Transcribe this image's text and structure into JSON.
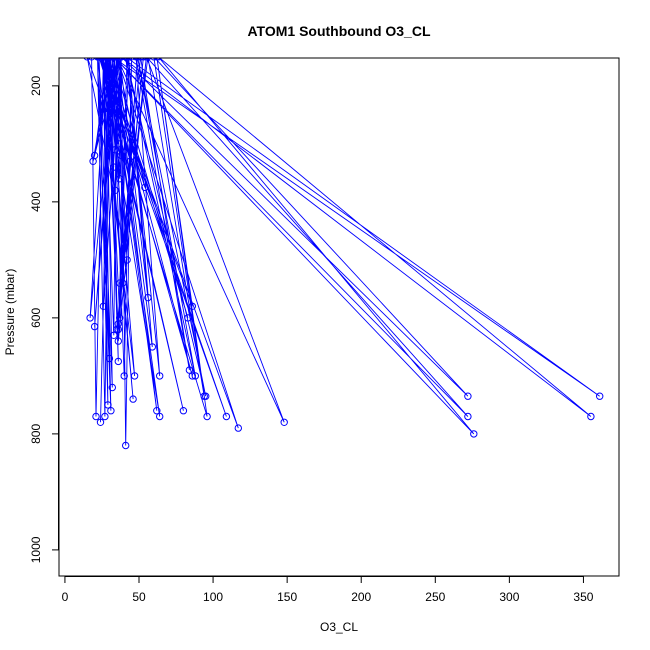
{
  "chart_data": {
    "type": "line",
    "title": "ATOM1 Southbound O3_CL",
    "xlabel": "O3_CL",
    "ylabel": "Pressure (mbar)",
    "xlim": [
      -4,
      374
    ],
    "ylim": [
      1045,
      152
    ],
    "y_reversed": true,
    "xticks": [
      0,
      50,
      100,
      150,
      200,
      250,
      300,
      350
    ],
    "yticks": [
      200,
      400,
      600,
      800,
      1000
    ],
    "grid": false,
    "legend": "none",
    "color": "#0000ff",
    "marker": "open-circle",
    "series": [
      {
        "x": [
          24,
          30,
          27,
          22,
          31,
          26,
          29,
          23,
          32,
          28,
          17,
          34,
          20,
          35,
          33,
          26,
          30,
          22,
          47,
          29,
          36,
          31,
          19,
          37,
          38,
          33,
          34,
          28,
          44,
          35,
          54,
          27,
          36,
          42,
          56,
          37,
          39,
          33,
          20,
          29,
          40,
          15,
          36,
          27,
          33,
          30,
          37,
          38,
          34,
          35,
          42,
          32,
          40,
          45,
          41,
          38,
          26,
          29,
          37,
          49,
          36,
          53,
          35,
          55,
          36,
          43,
          59,
          33,
          62,
          30,
          64,
          25,
          80,
          24,
          86,
          62,
          96,
          23,
          109,
          25,
          117,
          35,
          148,
          55,
          272,
          33,
          276,
          63,
          355,
          38,
          272,
          60,
          94,
          56,
          37,
          51,
          84,
          48,
          64,
          41,
          88,
          49,
          95,
          41,
          361,
          32,
          83,
          29,
          86,
          25,
          46,
          26,
          21,
          18
        ],
        "y": [
          780,
          150,
          770,
          150,
          760,
          150,
          750,
          150,
          720,
          150,
          600,
          150,
          615,
          150,
          630,
          150,
          670,
          150,
          700,
          150,
          675,
          150,
          330,
          150,
          320,
          150,
          310,
          150,
          330,
          150,
          375,
          150,
          620,
          150,
          565,
          150,
          540,
          150,
          320,
          150,
          480,
          150,
          300,
          150,
          340,
          150,
          360,
          150,
          380,
          150,
          500,
          150,
          700,
          150,
          820,
          150,
          580,
          150,
          600,
          150,
          610,
          150,
          620,
          150,
          640,
          150,
          650,
          150,
          760,
          150,
          770,
          150,
          760,
          150,
          580,
          150,
          770,
          150,
          770,
          150,
          790,
          150,
          780,
          150,
          770,
          150,
          800,
          150,
          770,
          150,
          735,
          150,
          735,
          150,
          540,
          150,
          690,
          150,
          700,
          150,
          700,
          150,
          735,
          150,
          735,
          150,
          600,
          150,
          700,
          150,
          740,
          150,
          770,
          150
        ]
      }
    ]
  }
}
